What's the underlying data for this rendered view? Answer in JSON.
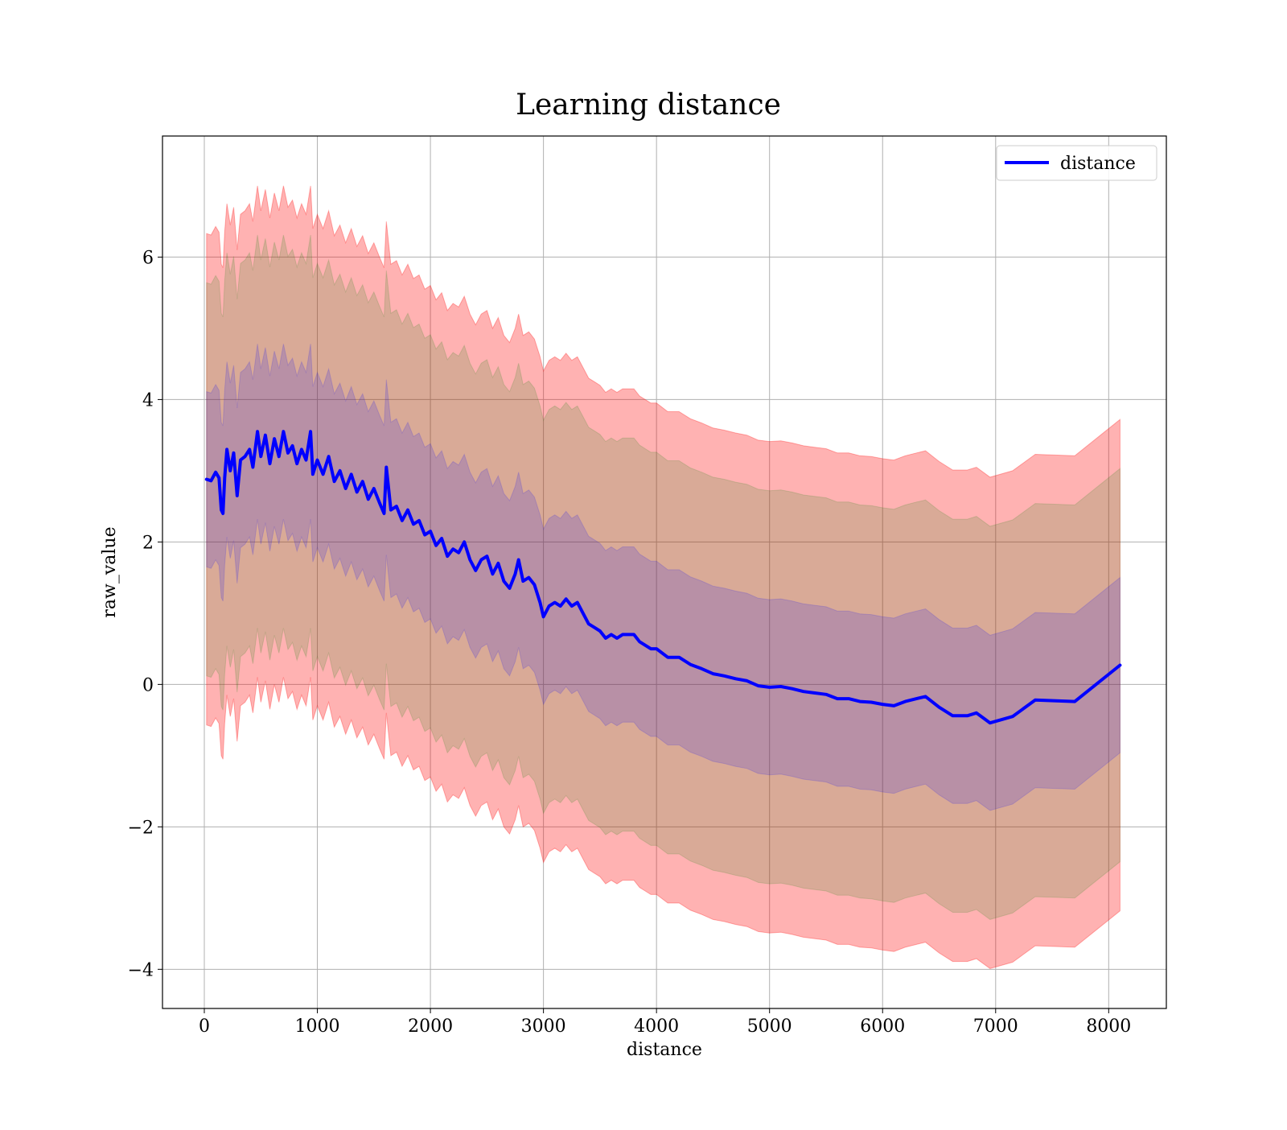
{
  "chart_data": {
    "type": "line",
    "title": "Learning distance",
    "xlabel": "distance",
    "ylabel": "raw_value",
    "xlim": [
      -370,
      8510
    ],
    "ylim": [
      -4.55,
      7.7
    ],
    "grid": true,
    "legend_position": "top-right",
    "x_ticks": [
      0,
      1000,
      2000,
      3000,
      4000,
      5000,
      6000,
      7000,
      8000
    ],
    "y_ticks": [
      -4,
      -2,
      0,
      2,
      4,
      6
    ],
    "x_tick_labels": [
      "0",
      "1000",
      "2000",
      "3000",
      "4000",
      "5000",
      "6000",
      "7000",
      "8000"
    ],
    "y_tick_labels": [
      "−4",
      "−2",
      "0",
      "2",
      "4",
      "6"
    ],
    "series": [
      {
        "name": "distance",
        "color": "#0000ff",
        "points": [
          [
            20,
            2.88
          ],
          [
            60,
            2.86
          ],
          [
            100,
            2.98
          ],
          [
            130,
            2.9
          ],
          [
            150,
            2.45
          ],
          [
            165,
            2.4
          ],
          [
            180,
            2.9
          ],
          [
            200,
            3.3
          ],
          [
            230,
            3.0
          ],
          [
            260,
            3.25
          ],
          [
            290,
            2.65
          ],
          [
            320,
            3.15
          ],
          [
            360,
            3.2
          ],
          [
            400,
            3.3
          ],
          [
            430,
            3.05
          ],
          [
            470,
            3.55
          ],
          [
            500,
            3.2
          ],
          [
            540,
            3.5
          ],
          [
            580,
            3.1
          ],
          [
            620,
            3.45
          ],
          [
            660,
            3.2
          ],
          [
            700,
            3.55
          ],
          [
            740,
            3.25
          ],
          [
            780,
            3.35
          ],
          [
            820,
            3.1
          ],
          [
            860,
            3.3
          ],
          [
            900,
            3.15
          ],
          [
            940,
            3.55
          ],
          [
            960,
            2.95
          ],
          [
            1000,
            3.15
          ],
          [
            1050,
            2.95
          ],
          [
            1100,
            3.2
          ],
          [
            1150,
            2.85
          ],
          [
            1200,
            3.0
          ],
          [
            1250,
            2.75
          ],
          [
            1300,
            2.95
          ],
          [
            1350,
            2.7
          ],
          [
            1400,
            2.85
          ],
          [
            1450,
            2.6
          ],
          [
            1500,
            2.75
          ],
          [
            1550,
            2.55
          ],
          [
            1590,
            2.4
          ],
          [
            1610,
            3.05
          ],
          [
            1650,
            2.45
          ],
          [
            1700,
            2.5
          ],
          [
            1750,
            2.3
          ],
          [
            1800,
            2.45
          ],
          [
            1850,
            2.25
          ],
          [
            1900,
            2.3
          ],
          [
            1950,
            2.1
          ],
          [
            2000,
            2.15
          ],
          [
            2050,
            1.95
          ],
          [
            2100,
            2.05
          ],
          [
            2150,
            1.8
          ],
          [
            2200,
            1.9
          ],
          [
            2250,
            1.85
          ],
          [
            2300,
            2.0
          ],
          [
            2350,
            1.75
          ],
          [
            2400,
            1.6
          ],
          [
            2450,
            1.75
          ],
          [
            2500,
            1.8
          ],
          [
            2550,
            1.55
          ],
          [
            2600,
            1.7
          ],
          [
            2650,
            1.45
          ],
          [
            2700,
            1.35
          ],
          [
            2750,
            1.55
          ],
          [
            2780,
            1.75
          ],
          [
            2820,
            1.45
          ],
          [
            2870,
            1.5
          ],
          [
            2920,
            1.4
          ],
          [
            2970,
            1.15
          ],
          [
            3000,
            0.95
          ],
          [
            3050,
            1.1
          ],
          [
            3100,
            1.15
          ],
          [
            3150,
            1.1
          ],
          [
            3200,
            1.2
          ],
          [
            3250,
            1.1
          ],
          [
            3300,
            1.15
          ],
          [
            3350,
            1.0
          ],
          [
            3400,
            0.85
          ],
          [
            3450,
            0.8
          ],
          [
            3500,
            0.75
          ],
          [
            3550,
            0.65
          ],
          [
            3600,
            0.7
          ],
          [
            3650,
            0.65
          ],
          [
            3700,
            0.7
          ],
          [
            3750,
            0.7
          ],
          [
            3800,
            0.7
          ],
          [
            3850,
            0.6
          ],
          [
            3900,
            0.55
          ],
          [
            3950,
            0.5
          ],
          [
            4000,
            0.5
          ],
          [
            4100,
            0.38
          ],
          [
            4200,
            0.38
          ],
          [
            4300,
            0.28
          ],
          [
            4400,
            0.22
          ],
          [
            4500,
            0.15
          ],
          [
            4600,
            0.12
          ],
          [
            4700,
            0.08
          ],
          [
            4800,
            0.05
          ],
          [
            4900,
            -0.02
          ],
          [
            5000,
            -0.04
          ],
          [
            5100,
            -0.03
          ],
          [
            5200,
            -0.06
          ],
          [
            5300,
            -0.1
          ],
          [
            5400,
            -0.12
          ],
          [
            5500,
            -0.14
          ],
          [
            5600,
            -0.2
          ],
          [
            5700,
            -0.2
          ],
          [
            5800,
            -0.24
          ],
          [
            5900,
            -0.25
          ],
          [
            6000,
            -0.28
          ],
          [
            6100,
            -0.3
          ],
          [
            6200,
            -0.24
          ],
          [
            6300,
            -0.2
          ],
          [
            6380,
            -0.17
          ],
          [
            6500,
            -0.32
          ],
          [
            6620,
            -0.44
          ],
          [
            6750,
            -0.44
          ],
          [
            6830,
            -0.4
          ],
          [
            6950,
            -0.54
          ],
          [
            7150,
            -0.45
          ],
          [
            7350,
            -0.22
          ],
          [
            7700,
            -0.24
          ],
          [
            8100,
            0.27
          ]
        ]
      }
    ],
    "bands": [
      {
        "color": "#ff0000",
        "opacity": 0.3,
        "offset_sd": 3,
        "sd_scale": 1.0
      },
      {
        "color": "#008000",
        "opacity": 0.15,
        "offset_sd": 2.4,
        "sd_scale": 1.0
      },
      {
        "color": "#0000ff",
        "opacity": 0.15,
        "offset_sd": 1.07,
        "sd_scale": 1.0
      }
    ],
    "band_sd": [
      [
        20,
        1.15
      ],
      [
        1000,
        1.15
      ],
      [
        2000,
        1.15
      ],
      [
        3000,
        1.15
      ],
      [
        4000,
        1.15
      ],
      [
        5000,
        1.15
      ],
      [
        6000,
        1.15
      ],
      [
        7000,
        1.15
      ],
      [
        8100,
        1.15
      ]
    ]
  }
}
